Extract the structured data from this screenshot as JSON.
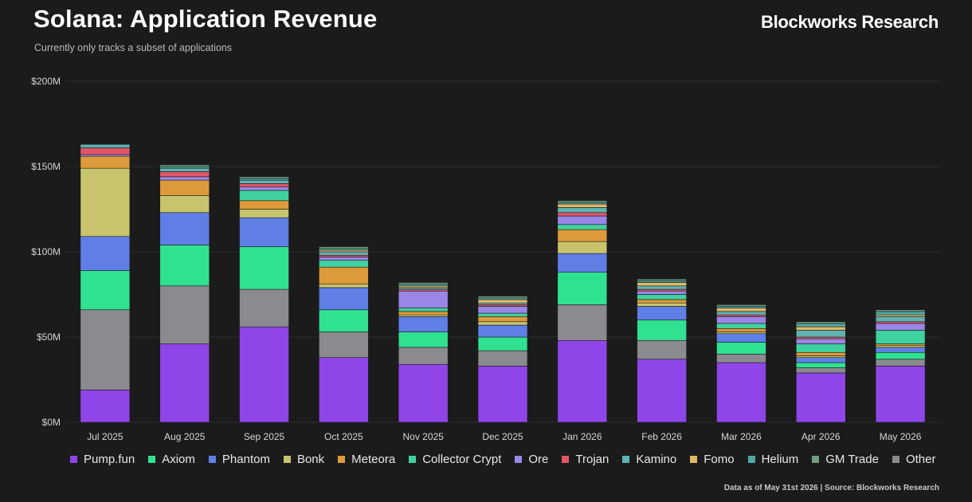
{
  "header": {
    "title": "Solana: Application Revenue",
    "subtitle": "Currently only tracks a subset of applications",
    "brand": "Blockworks Research"
  },
  "footer": {
    "note": "Data as of May 31st 2026 | Source: Blockworks Research"
  },
  "colors": {
    "background": "#1b1b1b",
    "gridline": "#2e2e2e"
  },
  "chart_data": {
    "type": "bar",
    "stacked": true,
    "title": "Solana: Application Revenue",
    "subtitle": "Currently only tracks a subset of applications",
    "xlabel": "",
    "ylabel": "",
    "ylim": [
      0,
      200
    ],
    "y_unit": "M",
    "y_ticks": [
      "$0M",
      "$50M",
      "$100M",
      "$150M",
      "$200M"
    ],
    "y_tick_values": [
      0,
      50,
      100,
      150,
      200
    ],
    "grid": true,
    "legend_position": "bottom",
    "categories": [
      "Jul 2025",
      "Aug 2025",
      "Sep 2025",
      "Oct 2025",
      "Nov 2025",
      "Dec 2025",
      "Jan 2026",
      "Feb 2026",
      "Mar 2026",
      "Apr 2026",
      "May 2026"
    ],
    "series": [
      {
        "name": "Pump.fun",
        "color": "#8f45e8",
        "values": [
          19,
          46,
          56,
          38,
          34,
          33,
          48,
          37,
          35,
          29,
          33
        ]
      },
      {
        "name": "Other",
        "color": "#8a8a8f",
        "values": [
          47,
          34,
          22,
          15,
          10,
          9,
          21,
          11,
          5,
          3,
          4
        ]
      },
      {
        "name": "Axiom",
        "color": "#30e192",
        "values": [
          23,
          24,
          25,
          13,
          9,
          8,
          19,
          12,
          7,
          3,
          4
        ]
      },
      {
        "name": "Phantom",
        "color": "#5f7fe6",
        "values": [
          20,
          19,
          17,
          13,
          9,
          7,
          11,
          8,
          5,
          3,
          3
        ]
      },
      {
        "name": "Bonk",
        "color": "#c7c46d",
        "values": [
          40,
          10,
          5,
          2,
          1,
          2,
          7,
          2,
          1,
          1,
          1
        ]
      },
      {
        "name": "Meteora",
        "color": "#dd9a3a",
        "values": [
          7,
          9,
          5,
          10,
          2,
          3,
          7,
          2,
          2,
          2,
          1
        ]
      },
      {
        "name": "Collector Crypt",
        "color": "#3fd1a0",
        "values": [
          0,
          0,
          6,
          4,
          2,
          2,
          3,
          3,
          3,
          5,
          8
        ]
      },
      {
        "name": "Ore",
        "color": "#9a86e6",
        "values": [
          1,
          2,
          2,
          2,
          10,
          4,
          5,
          2,
          4,
          3,
          4
        ]
      },
      {
        "name": "Trojan",
        "color": "#e05667",
        "values": [
          4,
          3,
          2,
          1,
          1,
          1,
          2,
          1,
          1,
          1,
          1
        ]
      },
      {
        "name": "Kamino",
        "color": "#5fb3b3",
        "values": [
          2,
          2,
          2,
          2,
          1,
          1,
          3,
          2,
          2,
          4,
          3
        ]
      },
      {
        "name": "Fomo",
        "color": "#e2b866",
        "values": [
          0,
          0,
          0,
          1,
          1,
          2,
          2,
          2,
          2,
          2,
          1
        ]
      },
      {
        "name": "Helium",
        "color": "#4fa9a0",
        "values": [
          0,
          1,
          1,
          1,
          1,
          1,
          1,
          1,
          1,
          2,
          2
        ]
      },
      {
        "name": "GM Trade",
        "color": "#6f9e84",
        "values": [
          0,
          1,
          1,
          1,
          1,
          1,
          1,
          1,
          1,
          1,
          1
        ]
      }
    ]
  },
  "legend": [
    {
      "label": "Pump.fun",
      "color": "#8f45e8"
    },
    {
      "label": "Axiom",
      "color": "#30e192"
    },
    {
      "label": "Phantom",
      "color": "#5f7fe6"
    },
    {
      "label": "Bonk",
      "color": "#c7c46d"
    },
    {
      "label": "Meteora",
      "color": "#dd9a3a"
    },
    {
      "label": "Collector Crypt",
      "color": "#3fd1a0"
    },
    {
      "label": "Ore",
      "color": "#9a86e6"
    },
    {
      "label": "Trojan",
      "color": "#e05667"
    },
    {
      "label": "Kamino",
      "color": "#5fb3b3"
    },
    {
      "label": "Fomo",
      "color": "#e2b866"
    },
    {
      "label": "Helium",
      "color": "#4fa9a0"
    },
    {
      "label": "GM Trade",
      "color": "#6f9e84"
    },
    {
      "label": "Other",
      "color": "#8a8a8f"
    }
  ]
}
